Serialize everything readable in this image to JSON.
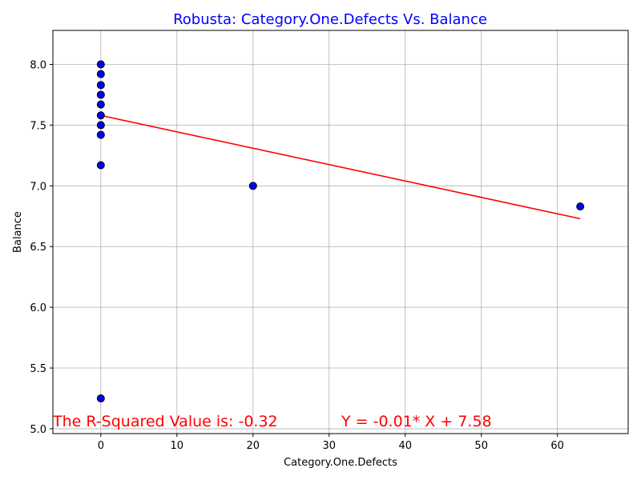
{
  "chart_data": {
    "type": "scatter",
    "title": "Robusta: Category.One.Defects Vs. Balance",
    "xlabel": "Category.One.Defects",
    "ylabel": "Balance",
    "xlim": [
      -6.3,
      69.3
    ],
    "ylim": [
      4.96,
      8.28
    ],
    "xticks": [
      0,
      10,
      20,
      30,
      40,
      50,
      60
    ],
    "yticks": [
      5.0,
      5.5,
      6.0,
      6.5,
      7.0,
      7.5,
      8.0
    ],
    "grid": true,
    "colors": {
      "title": "#0000ff",
      "points": "#0000ff",
      "point_edge": "#000000",
      "regression": "#ff0000",
      "annotation": "#ff0000"
    },
    "points": [
      {
        "x": 0,
        "y": 8.0
      },
      {
        "x": 0,
        "y": 7.92
      },
      {
        "x": 0,
        "y": 7.83
      },
      {
        "x": 0,
        "y": 7.75
      },
      {
        "x": 0,
        "y": 7.67
      },
      {
        "x": 0,
        "y": 7.58
      },
      {
        "x": 0,
        "y": 7.5
      },
      {
        "x": 0,
        "y": 7.42
      },
      {
        "x": 0,
        "y": 7.17
      },
      {
        "x": 0,
        "y": 5.25
      },
      {
        "x": 20,
        "y": 7.0
      },
      {
        "x": 63,
        "y": 6.83
      }
    ],
    "regression": {
      "slope": -0.0135,
      "intercept": 7.58,
      "x_range": [
        0,
        63
      ]
    },
    "annotations": {
      "r_squared": "The R-Squared Value is: -0.32",
      "equation": "Y = -0.01* X + 7.58"
    }
  }
}
